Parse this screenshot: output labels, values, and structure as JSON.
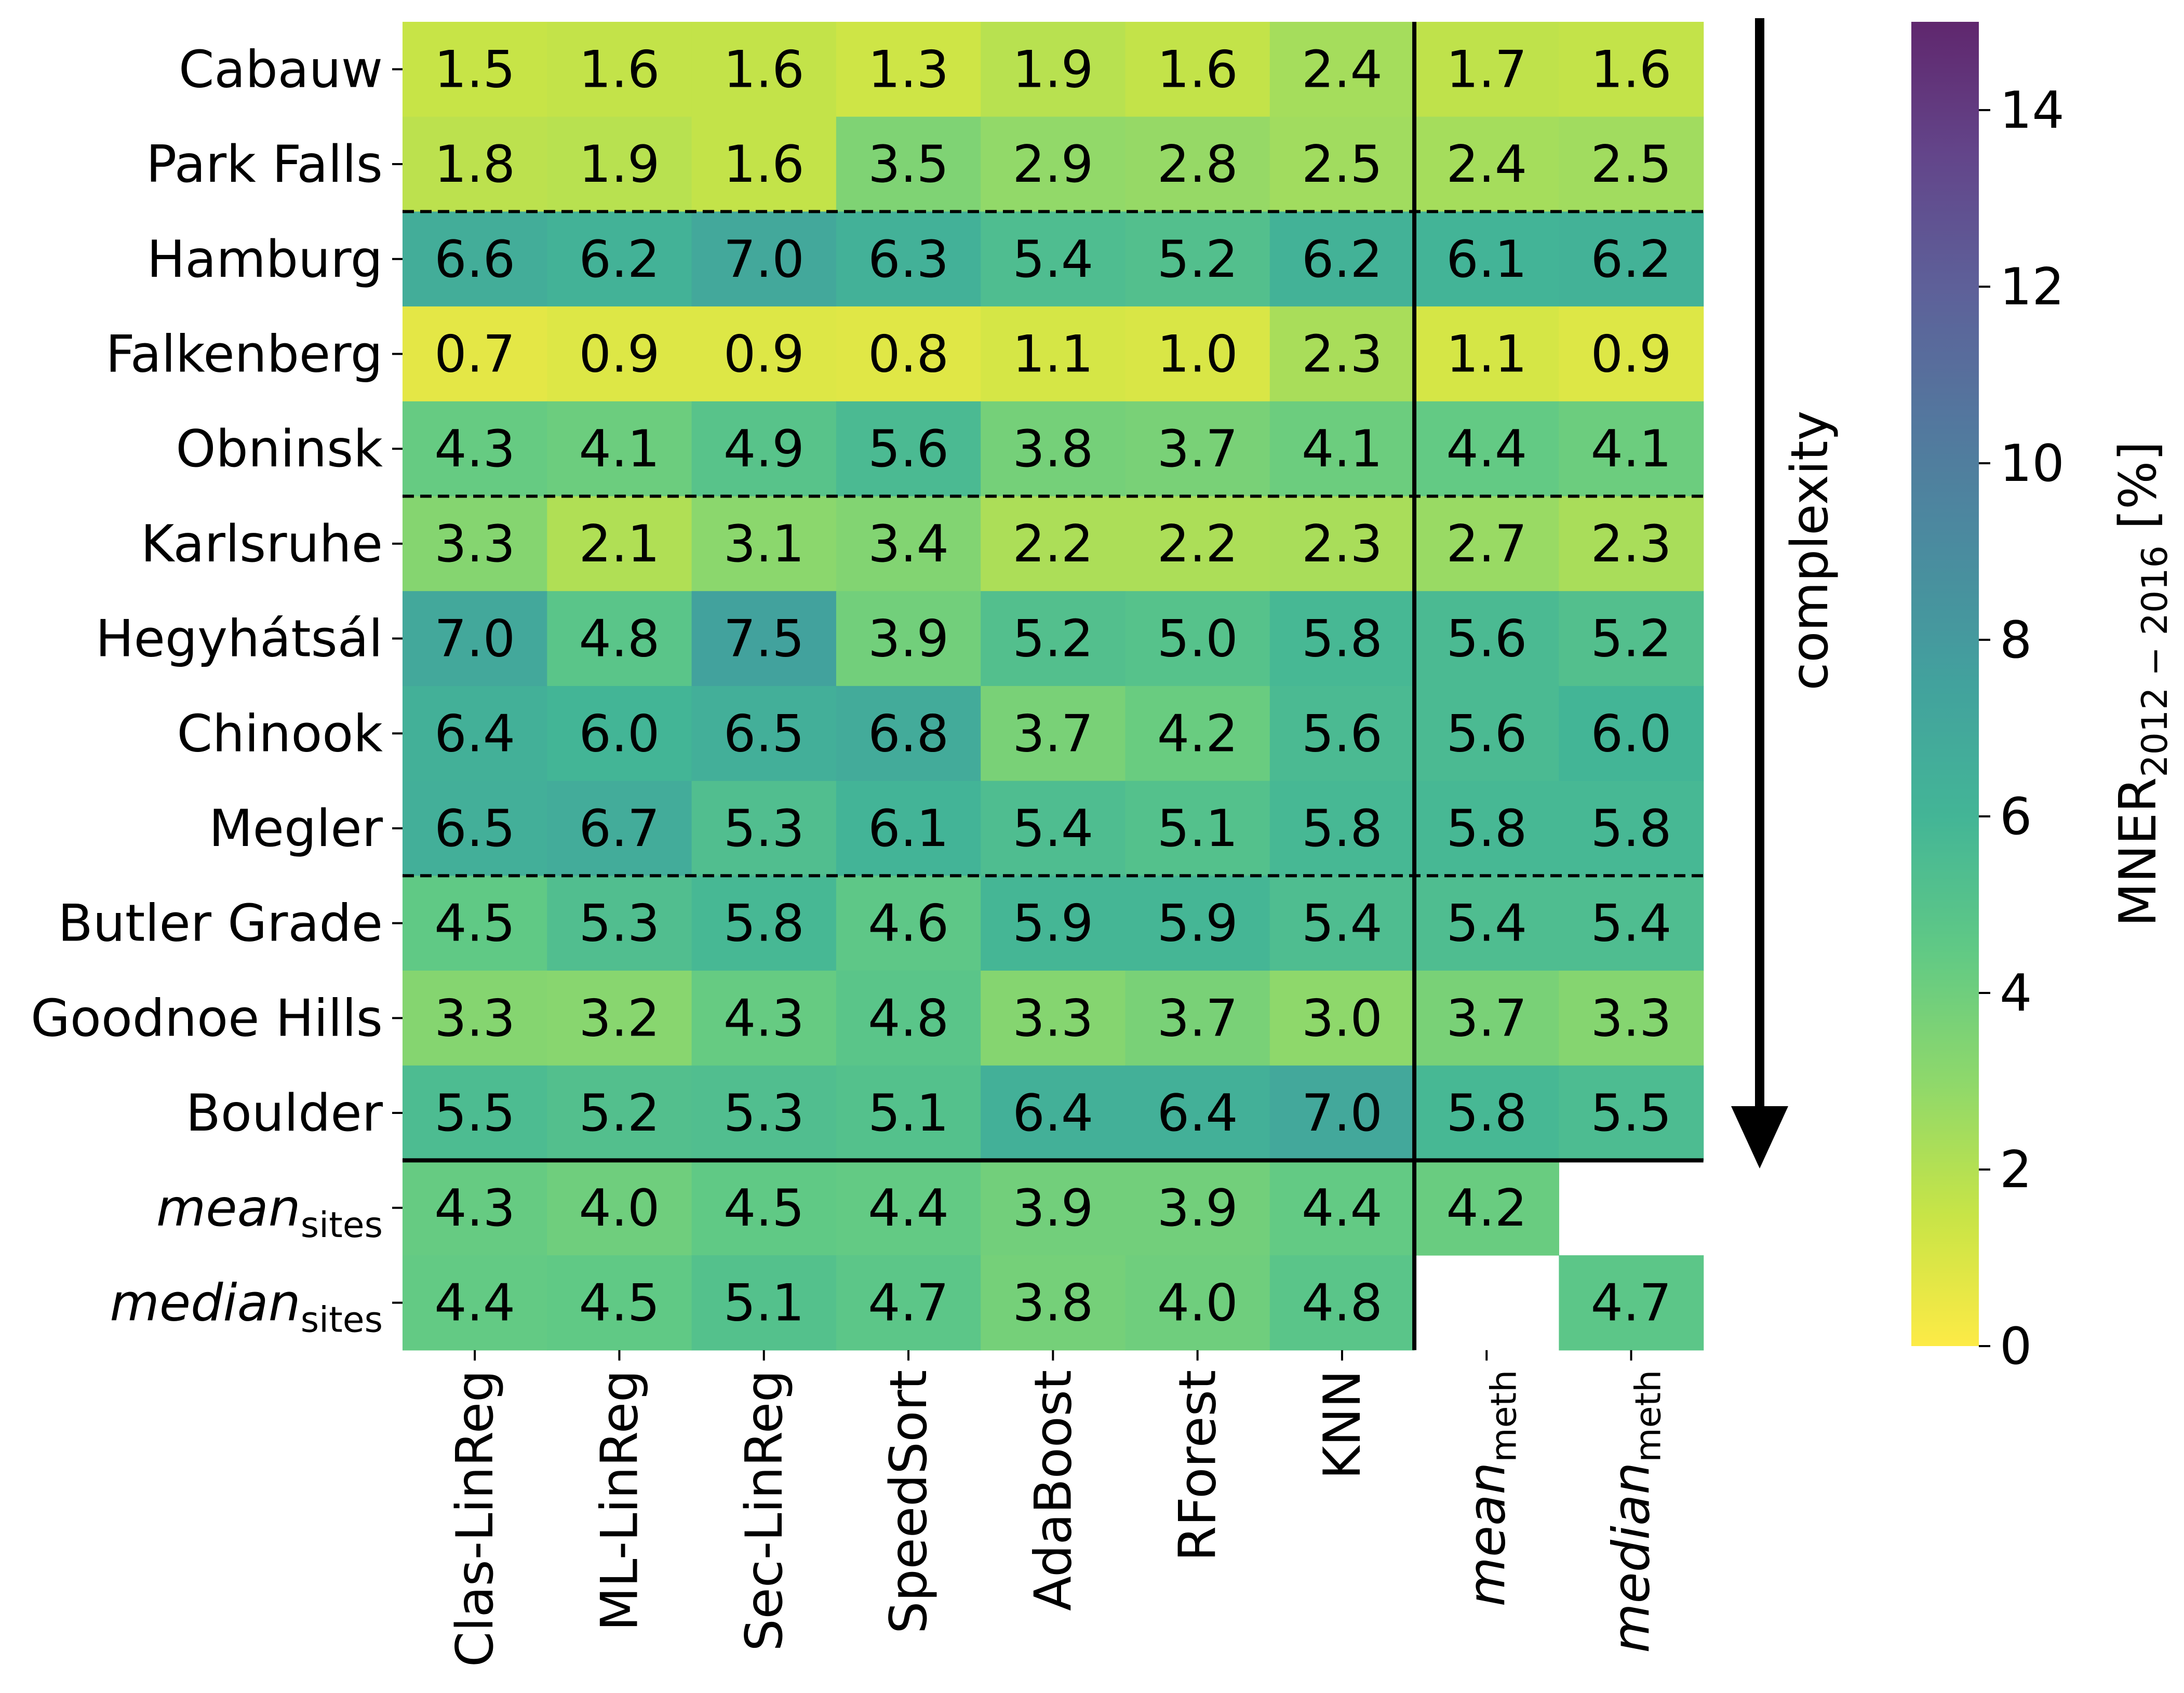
{
  "chart_data": {
    "type": "heatmap",
    "rows": [
      {
        "label": "Cabauw"
      },
      {
        "label": "Park Falls"
      },
      {
        "label": "Hamburg"
      },
      {
        "label": "Falkenberg"
      },
      {
        "label": "Obninsk"
      },
      {
        "label": "Karlsruhe"
      },
      {
        "label": "Hegyhátsál"
      },
      {
        "label": "Chinook"
      },
      {
        "label": "Megler"
      },
      {
        "label": "Butler Grade"
      },
      {
        "label": "Goodnoe Hills"
      },
      {
        "label": "Boulder"
      },
      {
        "label": "mean",
        "sub": "sites",
        "italic": true
      },
      {
        "label": "median",
        "sub": "sites",
        "italic": true
      }
    ],
    "columns": [
      {
        "label": "Clas-LinReg"
      },
      {
        "label": "ML-LinReg"
      },
      {
        "label": "Sec-LinReg"
      },
      {
        "label": "SpeedSort"
      },
      {
        "label": "AdaBoost"
      },
      {
        "label": "RForest"
      },
      {
        "label": "KNN"
      },
      {
        "label": "mean",
        "sub": "meth",
        "italic": true
      },
      {
        "label": "median",
        "sub": "meth",
        "italic": true
      }
    ],
    "values": [
      [
        1.5,
        1.6,
        1.6,
        1.3,
        1.9,
        1.6,
        2.4,
        1.7,
        1.6
      ],
      [
        1.8,
        1.9,
        1.6,
        3.5,
        2.9,
        2.8,
        2.5,
        2.4,
        2.5
      ],
      [
        6.6,
        6.2,
        7.0,
        6.3,
        5.4,
        5.2,
        6.2,
        6.1,
        6.2
      ],
      [
        0.7,
        0.9,
        0.9,
        0.8,
        1.1,
        1.0,
        2.3,
        1.1,
        0.9
      ],
      [
        4.3,
        4.1,
        4.9,
        5.6,
        3.8,
        3.7,
        4.1,
        4.4,
        4.1
      ],
      [
        3.3,
        2.1,
        3.1,
        3.4,
        2.2,
        2.2,
        2.3,
        2.7,
        2.3
      ],
      [
        7.0,
        4.8,
        7.5,
        3.9,
        5.2,
        5.0,
        5.8,
        5.6,
        5.2
      ],
      [
        6.4,
        6.0,
        6.5,
        6.8,
        3.7,
        4.2,
        5.6,
        5.6,
        6.0
      ],
      [
        6.5,
        6.7,
        5.3,
        6.1,
        5.4,
        5.1,
        5.8,
        5.8,
        5.8
      ],
      [
        4.5,
        5.3,
        5.8,
        4.6,
        5.9,
        5.9,
        5.4,
        5.4,
        5.4
      ],
      [
        3.3,
        3.2,
        4.3,
        4.8,
        3.3,
        3.7,
        3.0,
        3.7,
        3.3
      ],
      [
        5.5,
        5.2,
        5.3,
        5.1,
        6.4,
        6.4,
        7.0,
        5.8,
        5.5
      ],
      [
        4.3,
        4.0,
        4.5,
        4.4,
        3.9,
        3.9,
        4.4,
        4.2,
        null
      ],
      [
        4.4,
        4.5,
        5.1,
        4.7,
        3.8,
        4.0,
        4.8,
        null,
        4.7
      ]
    ],
    "value_format": "one decimal",
    "dashed_separators_after_rows": [
      "Park Falls",
      "Obninsk",
      "Megler"
    ],
    "solid_separator_after_row": "Boulder",
    "solid_separator_after_column": "KNN",
    "arrow_label": "complexity",
    "colorbar": {
      "label": "MNER",
      "label_subscript": "2012 − 2016",
      "label_suffix": "[%]",
      "range": [
        0,
        15
      ],
      "ticks": [
        0,
        2,
        4,
        6,
        8,
        10,
        12,
        14
      ],
      "colormap": "viridis_r",
      "alpha": 0.85
    }
  }
}
